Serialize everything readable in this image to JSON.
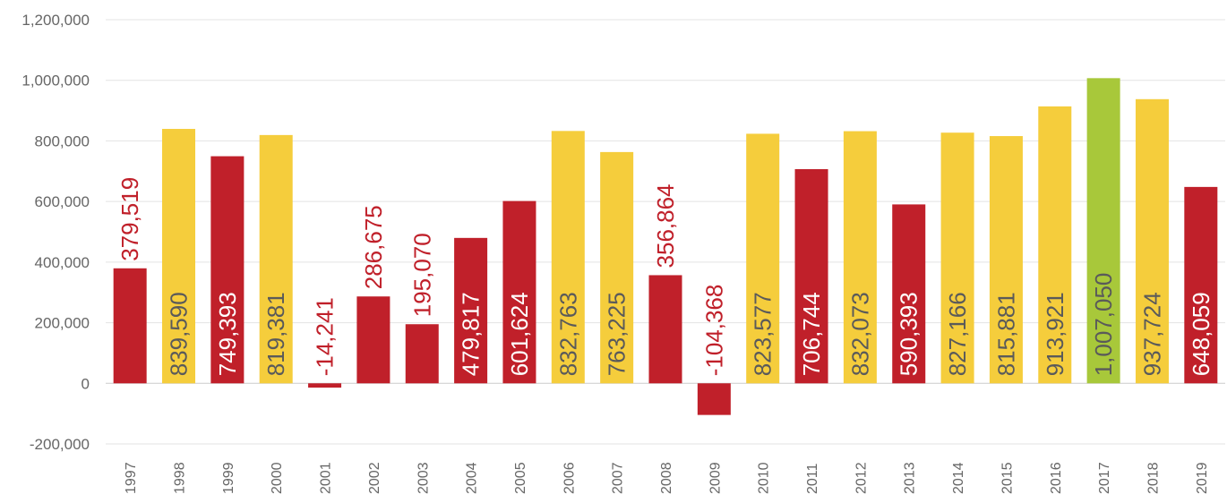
{
  "chart_data": {
    "type": "bar",
    "title": "",
    "xlabel": "",
    "ylabel": "",
    "ylim": [
      -200000,
      1200000
    ],
    "yticks": [
      -200000,
      0,
      200000,
      400000,
      600000,
      800000,
      1000000,
      1200000
    ],
    "ytick_labels": [
      "-200,000",
      "0",
      "200,000",
      "400,000",
      "600,000",
      "800,000",
      "1,000,000",
      "1,200,000"
    ],
    "grid": true,
    "legend": "none",
    "categories": [
      "1997",
      "1998",
      "1999",
      "2000",
      "2001",
      "2002",
      "2003",
      "2004",
      "2005",
      "2006",
      "2007",
      "2008",
      "2009",
      "2010",
      "2011",
      "2012",
      "2013",
      "2014",
      "2015",
      "2016",
      "2017",
      "2018",
      "2019"
    ],
    "values": [
      379519,
      839590,
      749393,
      819381,
      -14241,
      286675,
      195070,
      479817,
      601624,
      832763,
      763225,
      356864,
      -104368,
      823577,
      706744,
      832073,
      590393,
      827166,
      815881,
      913921,
      1007050,
      937724,
      648059
    ],
    "data_labels": [
      "379,519",
      "839,590",
      "749,393",
      "819,381",
      "-14,241",
      "286,675",
      "195,070",
      "479,817",
      "601,624",
      "832,763",
      "763,225",
      "356,864",
      "-104,368",
      "823,577",
      "706,744",
      "832,073",
      "590,393",
      "827,166",
      "815,881",
      "913,921",
      "1,007,050",
      "937,724",
      "648,059"
    ],
    "bar_colors": [
      "red",
      "yellow",
      "red",
      "yellow",
      "red",
      "red",
      "red",
      "red",
      "red",
      "yellow",
      "yellow",
      "red",
      "red",
      "yellow",
      "red",
      "yellow",
      "red",
      "yellow",
      "yellow",
      "yellow",
      "green",
      "yellow",
      "red"
    ],
    "colors": {
      "red": "#c0202a",
      "yellow": "#f5cd3c",
      "green": "#a8c83a",
      "grid": "#e3e3e3",
      "axis": "#cccccc"
    }
  }
}
